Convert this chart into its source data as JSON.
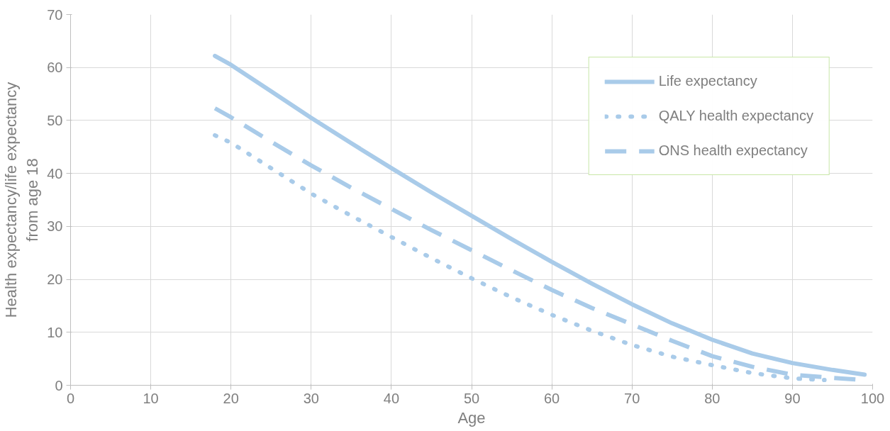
{
  "chart_data": {
    "type": "line",
    "xlabel": "Age",
    "ylabel": "Health expectancy/life expectancy\nfrom age 18",
    "xlim": [
      0,
      100
    ],
    "xticks": [
      0,
      10,
      20,
      30,
      40,
      50,
      60,
      70,
      80,
      90,
      100
    ],
    "ylim": [
      0,
      70
    ],
    "yticks": [
      0,
      10,
      20,
      30,
      40,
      50,
      60,
      70
    ],
    "grid": true,
    "legend": "top right",
    "marker": "none",
    "series": [
      {
        "name": "Life expectancy",
        "color": "#a9cbe9",
        "line_style": "solid",
        "x": [
          18,
          20,
          25,
          30,
          35,
          40,
          45,
          50,
          55,
          60,
          65,
          70,
          75,
          80,
          85,
          90,
          95,
          99
        ],
        "values": [
          62.2,
          60.5,
          55.5,
          50.5,
          45.7,
          41,
          36.4,
          32,
          27.6,
          23.3,
          19.2,
          15.3,
          11.7,
          8.6,
          6,
          4.2,
          2.9,
          2
        ]
      },
      {
        "name": "QALY health expectancy",
        "color": "#a9cbe9",
        "line_style": "dotted",
        "x": [
          18,
          20,
          25,
          30,
          35,
          40,
          45,
          50,
          55,
          60,
          65,
          70,
          75,
          80,
          85,
          90,
          94
        ],
        "values": [
          47.2,
          45.8,
          41,
          36.2,
          32,
          28,
          24,
          20.2,
          16.6,
          13.3,
          10.3,
          7.6,
          5.4,
          3.8,
          2.3,
          1.3,
          1
        ]
      },
      {
        "name": "ONS health expectancy",
        "color": "#a9cbe9",
        "line_style": "dashed",
        "x": [
          18,
          20,
          25,
          30,
          35,
          40,
          45,
          50,
          55,
          60,
          65,
          70,
          75,
          80,
          85,
          90,
          95,
          99
        ],
        "values": [
          52.3,
          50.6,
          46,
          41.5,
          37.3,
          33.3,
          29.3,
          25.5,
          21.7,
          18,
          14.6,
          11.5,
          8.4,
          5.5,
          3.5,
          2,
          1.4,
          1
        ]
      }
    ]
  }
}
